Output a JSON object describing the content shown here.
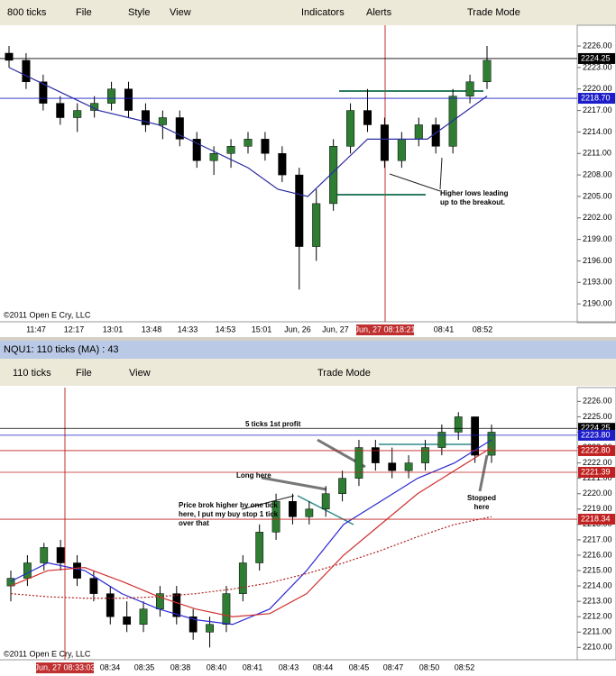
{
  "windows": [
    {
      "toolbar": [
        "800 ticks",
        "File",
        "Style",
        "View",
        "Indicators",
        "Alerts",
        "Trade Mode"
      ],
      "ylim": [
        2187.5,
        2228.9
      ],
      "yticks": [
        {
          "value": 2226,
          "label": "2226.00"
        },
        {
          "value": 2223,
          "label": "2223.00"
        },
        {
          "value": 2220,
          "label": "2220.00"
        },
        {
          "value": 2217,
          "label": "2217.00"
        },
        {
          "value": 2214,
          "label": "2214.00"
        },
        {
          "value": 2211,
          "label": "2211.00"
        },
        {
          "value": 2208,
          "label": "2208.00"
        },
        {
          "value": 2205,
          "label": "2205.00"
        },
        {
          "value": 2202,
          "label": "2202.00"
        },
        {
          "value": 2199,
          "label": "2199.00"
        },
        {
          "value": 2196,
          "label": "2196.00"
        },
        {
          "value": 2193,
          "label": "2193.00"
        },
        {
          "value": 2190,
          "label": "2190.00"
        }
      ],
      "x_labels": [
        "11:47",
        "12:17",
        "13:01",
        "13:48",
        "14:33",
        "14:53",
        "15:01",
        "Jun, 26",
        "Jun, 27",
        "Jun, 27 08:18:21",
        "08:41",
        "08:52"
      ],
      "price_markers": [
        {
          "value": 2224.25,
          "color": "#000000"
        },
        {
          "value": 2218.7,
          "label": "2218.70",
          "color": "#1c1cc8"
        }
      ],
      "candles": [
        [
          2225,
          2226,
          2223,
          2224
        ],
        [
          2224,
          2225,
          2220,
          2221
        ],
        [
          2221,
          2222,
          2217,
          2218
        ],
        [
          2218,
          2219,
          2215,
          2216
        ],
        [
          2216,
          2218,
          2214,
          2217
        ],
        [
          2217,
          2219,
          2216,
          2218
        ],
        [
          2218,
          2221,
          2217,
          2220
        ],
        [
          2220,
          2221,
          2216,
          2217
        ],
        [
          2217,
          2218,
          2214,
          2215
        ],
        [
          2215,
          2217,
          2213,
          2216
        ],
        [
          2216,
          2217,
          2212,
          2213
        ],
        [
          2213,
          2214,
          2209,
          2210
        ],
        [
          2210,
          2212,
          2208,
          2211
        ],
        [
          2211,
          2213,
          2209,
          2212
        ],
        [
          2212,
          2214,
          2211,
          2213
        ],
        [
          2213,
          2214,
          2210,
          2211
        ],
        [
          2211,
          2212,
          2207,
          2208
        ],
        [
          2208,
          2209,
          2192,
          2198
        ],
        [
          2198,
          2206,
          2196,
          2204
        ],
        [
          2204,
          2213,
          2203,
          2212
        ],
        [
          2212,
          2218,
          2211,
          2217
        ],
        [
          2217,
          2220,
          2214,
          2215
        ],
        [
          2215,
          2216,
          2209,
          2210
        ],
        [
          2210,
          2214,
          2209,
          2213
        ],
        [
          2213,
          2216,
          2212,
          2215
        ],
        [
          2215,
          2216,
          2211,
          2212
        ],
        [
          2212,
          2220,
          2211,
          2219
        ],
        [
          2219,
          2222,
          2218,
          2221
        ],
        [
          2221,
          2226,
          2220,
          2224
        ]
      ],
      "series": [
        {
          "color": "#2a2aa0",
          "dash": false,
          "values": [
            2223,
            2221,
            2219,
            2217,
            2216,
            2215,
            2213,
            2211,
            2209,
            2206,
            2205,
            2209,
            2213,
            2213,
            2213,
            2216,
            2219
          ]
        }
      ],
      "copyright": "©2011 Open E Cry, LLC",
      "annotations": [
        "Higher lows leading up to the breakout."
      ]
    },
    {
      "title": "NQU1: 110 ticks (MA) : 43",
      "toolbar": [
        "110 ticks",
        "File",
        "View",
        "Trade Mode"
      ],
      "ylim": [
        2209.2,
        2226.9
      ],
      "yticks": [
        {
          "value": 2226,
          "label": "2226.00"
        },
        {
          "value": 2225,
          "label": "2225.00"
        },
        {
          "value": 2224,
          "label": "2224.00"
        },
        {
          "value": 2223,
          "label": "2223.00"
        },
        {
          "value": 2222,
          "label": "2222.00"
        },
        {
          "value": 2221,
          "label": "2221.00"
        },
        {
          "value": 2220,
          "label": "2220.00"
        },
        {
          "value": 2219,
          "label": "2219.00"
        },
        {
          "value": 2218,
          "label": "2218.00"
        },
        {
          "value": 2217,
          "label": "2217.00"
        },
        {
          "value": 2216,
          "label": "2216.00"
        },
        {
          "value": 2215,
          "label": "2215.00"
        },
        {
          "value": 2214,
          "label": "2214.00"
        },
        {
          "value": 2213,
          "label": "2213.00"
        },
        {
          "value": 2212,
          "label": "2212.00"
        },
        {
          "value": 2211,
          "label": "2211.00"
        },
        {
          "value": 2210,
          "label": "2210.00"
        }
      ],
      "x_labels": [
        "Jun, 27 08:33:03",
        "08:34",
        "08:35",
        "08:38",
        "08:40",
        "08:41",
        "08:43",
        "08:44",
        "08:45",
        "08:47",
        "08:50",
        "08:52"
      ],
      "price_markers": [
        {
          "value": 2224.25,
          "color": "#000000"
        },
        {
          "value": 2223.8,
          "label": "2223.80",
          "color": "#1c1cc8"
        },
        {
          "value": 2222.8,
          "label": "2222.80",
          "color": "#c02020"
        },
        {
          "value": 2221.39,
          "color": "#c02020"
        },
        {
          "value": 2218.34,
          "color": "#c02020"
        }
      ],
      "candles": [
        [
          2214,
          2215,
          2213,
          2214.5
        ],
        [
          2214.5,
          2216,
          2214,
          2215.5
        ],
        [
          2215.5,
          2216.8,
          2215,
          2216.5
        ],
        [
          2216.5,
          2217,
          2215,
          2215.5
        ],
        [
          2215.5,
          2216,
          2214,
          2214.5
        ],
        [
          2214.5,
          2215,
          2213,
          2213.5
        ],
        [
          2213.5,
          2214,
          2211.5,
          2212
        ],
        [
          2212,
          2213,
          2211,
          2211.5
        ],
        [
          2211.5,
          2213,
          2211,
          2212.5
        ],
        [
          2212.5,
          2214,
          2212,
          2213.5
        ],
        [
          2213.5,
          2214,
          2211.5,
          2212
        ],
        [
          2212,
          2212.5,
          2210.5,
          2211
        ],
        [
          2211,
          2212,
          2210,
          2211.5
        ],
        [
          2211.5,
          2214,
          2211,
          2213.5
        ],
        [
          2213.5,
          2216,
          2213,
          2215.5
        ],
        [
          2215.5,
          2218,
          2215,
          2217.5
        ],
        [
          2217.5,
          2220,
          2217,
          2219.5
        ],
        [
          2219.5,
          2220,
          2218,
          2218.5
        ],
        [
          2218.5,
          2219.5,
          2218,
          2219
        ],
        [
          2219,
          2220.5,
          2218.5,
          2220
        ],
        [
          2220,
          2221.5,
          2219.5,
          2221
        ],
        [
          2221,
          2223.5,
          2220.5,
          2223
        ],
        [
          2223,
          2223.5,
          2221.5,
          2222
        ],
        [
          2222,
          2223,
          2221,
          2221.5
        ],
        [
          2221.5,
          2222.5,
          2221,
          2222
        ],
        [
          2222,
          2223.5,
          2221.5,
          2223
        ],
        [
          2223,
          2224.5,
          2222.5,
          2224
        ],
        [
          2224,
          2225.3,
          2223.5,
          2225
        ],
        [
          2225,
          2225,
          2222,
          2222.5
        ],
        [
          2222.5,
          2224.5,
          2222,
          2224
        ]
      ],
      "series": [
        {
          "color": "#2a2ad0",
          "dash": false,
          "values": [
            2214.3,
            2215.5,
            2215,
            2213.5,
            2212.5,
            2211.8,
            2211.5,
            2212.5,
            2215,
            2218,
            2219.5,
            2221,
            2222,
            2223.5
          ]
        },
        {
          "color": "#d03030",
          "dash": false,
          "values": [
            2214,
            2215,
            2215.2,
            2214.3,
            2213.3,
            2212.5,
            2212,
            2212.2,
            2213.5,
            2216,
            2218,
            2220,
            2221.5,
            2223
          ]
        },
        {
          "color": "#b02020",
          "dash": true,
          "values": [
            2213.5,
            2213.3,
            2213.2,
            2213.2,
            2213.3,
            2213.5,
            2213.8,
            2214.2,
            2214.8,
            2215.5,
            2216.3,
            2217.2,
            2218,
            2218.5
          ]
        }
      ],
      "copyright": "©2011 Open E Cry, LLC",
      "annotations": [
        "5 ticks 1st profit",
        "Long here",
        "Price brok higher by one tick here, I put my buy stop 1 tick over that",
        "Stopped here"
      ]
    }
  ]
}
